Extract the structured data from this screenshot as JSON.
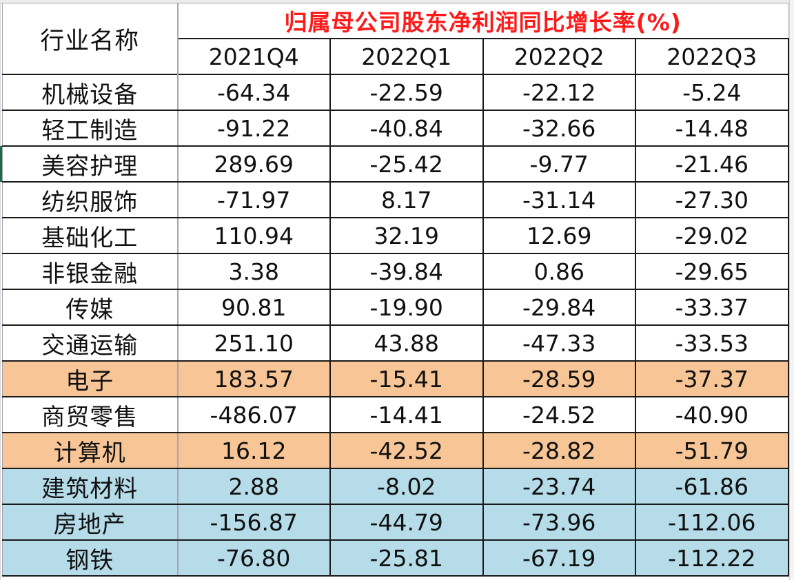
{
  "table": {
    "name_header": "行业名称",
    "group_header": "归属母公司股东净利润同比增长率(%)",
    "periods": [
      "2021Q4",
      "2022Q1",
      "2022Q2",
      "2022Q3"
    ],
    "colors": {
      "title_red": "#ff1a1a",
      "highlight_orange": "#f8c597",
      "highlight_blue": "#b5dce8"
    },
    "rows": [
      {
        "industry": "机械设备",
        "values": [
          "-64.34",
          "-22.59",
          "-22.12",
          "-5.24"
        ],
        "highlight": "none"
      },
      {
        "industry": "轻工制造",
        "values": [
          "-91.22",
          "-40.84",
          "-32.66",
          "-14.48"
        ],
        "highlight": "none"
      },
      {
        "industry": "美容护理",
        "values": [
          "289.69",
          "-25.42",
          "-9.77",
          "-21.46"
        ],
        "highlight": "none"
      },
      {
        "industry": "纺织服饰",
        "values": [
          "-71.97",
          "8.17",
          "-31.14",
          "-27.30"
        ],
        "highlight": "none"
      },
      {
        "industry": "基础化工",
        "values": [
          "110.94",
          "32.19",
          "12.69",
          "-29.02"
        ],
        "highlight": "none"
      },
      {
        "industry": "非银金融",
        "values": [
          "3.38",
          "-39.84",
          "0.86",
          "-29.65"
        ],
        "highlight": "none"
      },
      {
        "industry": "传媒",
        "values": [
          "90.81",
          "-19.90",
          "-29.84",
          "-33.37"
        ],
        "highlight": "none"
      },
      {
        "industry": "交通运输",
        "values": [
          "251.10",
          "43.88",
          "-47.33",
          "-33.53"
        ],
        "highlight": "none"
      },
      {
        "industry": "电子",
        "values": [
          "183.57",
          "-15.41",
          "-28.59",
          "-37.37"
        ],
        "highlight": "orange"
      },
      {
        "industry": "商贸零售",
        "values": [
          "-486.07",
          "-14.41",
          "-24.52",
          "-40.90"
        ],
        "highlight": "none"
      },
      {
        "industry": "计算机",
        "values": [
          "16.12",
          "-42.52",
          "-28.82",
          "-51.79"
        ],
        "highlight": "orange"
      },
      {
        "industry": "建筑材料",
        "values": [
          "2.88",
          "-8.02",
          "-23.74",
          "-61.86"
        ],
        "highlight": "blue"
      },
      {
        "industry": "房地产",
        "values": [
          "-156.87",
          "-44.79",
          "-73.96",
          "-112.06"
        ],
        "highlight": "blue"
      },
      {
        "industry": "钢铁",
        "values": [
          "-76.80",
          "-25.81",
          "-67.19",
          "-112.22"
        ],
        "highlight": "blue"
      }
    ]
  }
}
